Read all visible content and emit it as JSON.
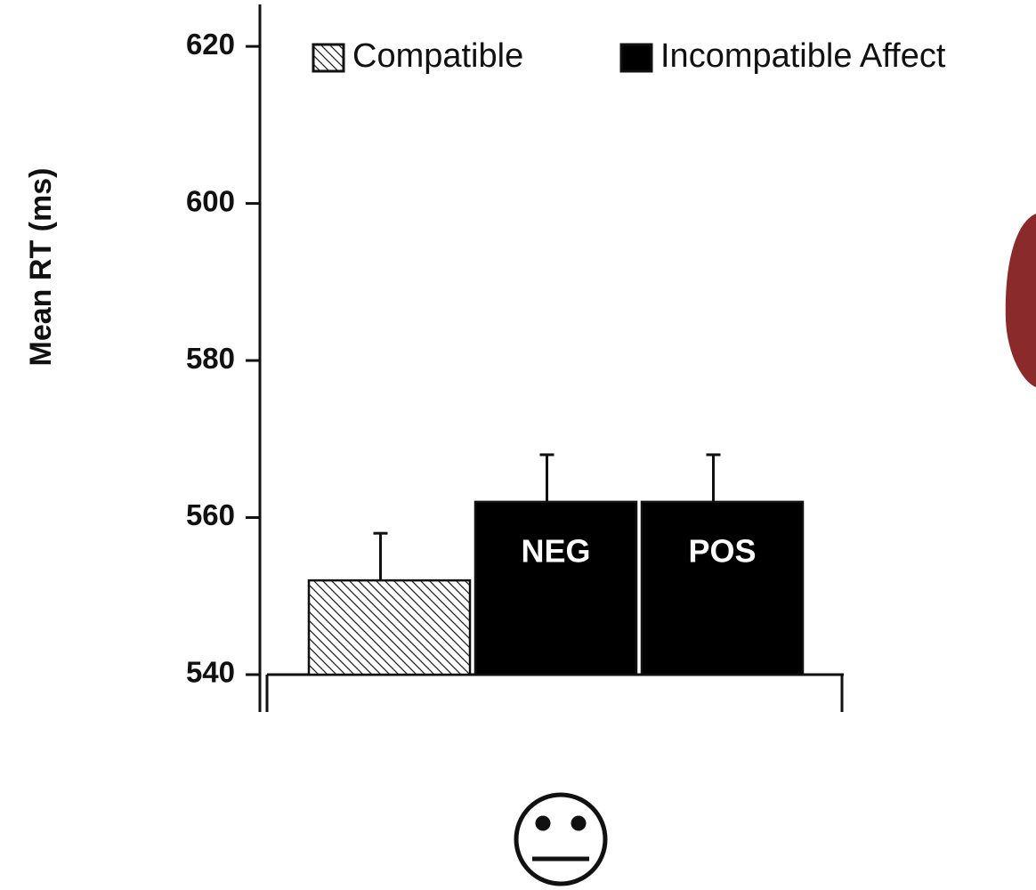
{
  "chart_data": {
    "type": "bar",
    "ylabel": "Mean RT (ms)",
    "categories": [
      null,
      "NEG",
      "POS"
    ],
    "series": [
      {
        "name": "Compatible",
        "color": "hatch",
        "values": [
          552,
          null,
          null
        ],
        "errors": [
          6,
          null,
          null
        ]
      },
      {
        "name": "Incompatible Affect",
        "color": "#000000",
        "values": [
          null,
          562,
          562
        ],
        "errors": [
          null,
          6,
          6
        ]
      }
    ],
    "ylim": [
      540,
      625
    ],
    "yticks": [
      540,
      560,
      580,
      600,
      620
    ]
  }
}
